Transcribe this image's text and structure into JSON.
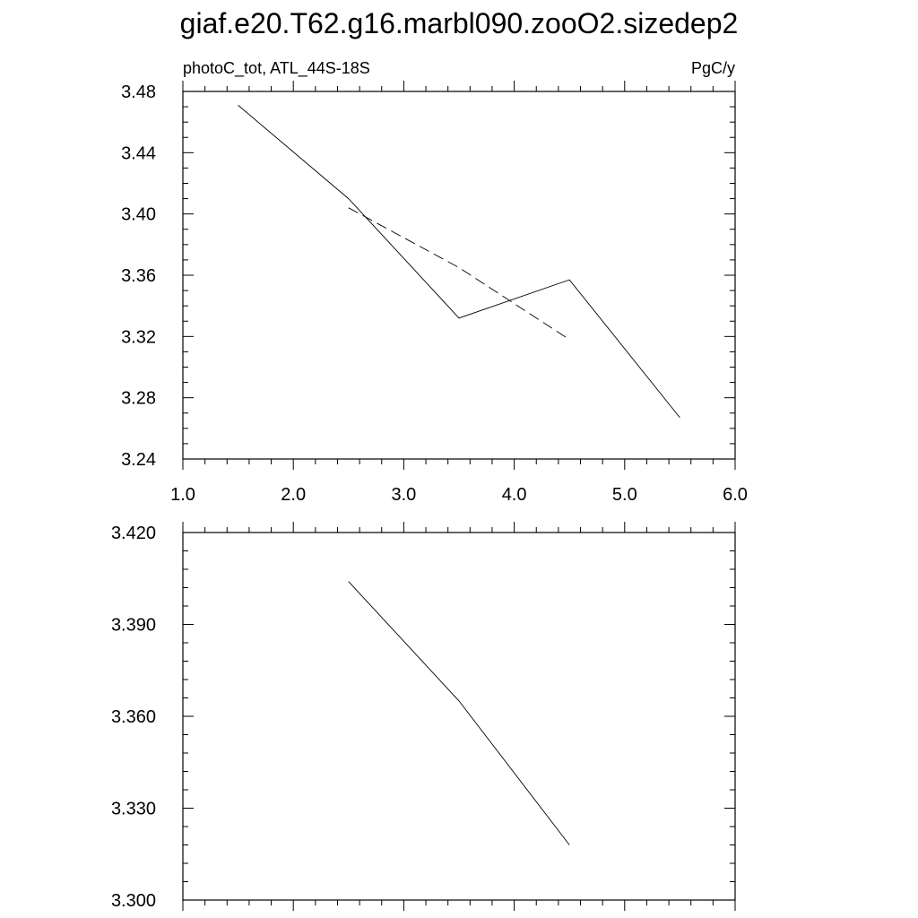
{
  "page": {
    "title": "giaf.e20.T62.g16.marbl090.zooO2.sizedep2"
  },
  "chart_data": [
    {
      "type": "line",
      "left_label": "photoC_tot, ATL_44S-18S",
      "right_label": "PgC/y",
      "xlim": [
        1.0,
        6.0
      ],
      "ylim": [
        3.24,
        3.48
      ],
      "x_ticks": [
        1.0,
        2.0,
        3.0,
        4.0,
        5.0,
        6.0
      ],
      "x_tick_labels": [
        "1.0",
        "2.0",
        "3.0",
        "4.0",
        "5.0",
        "6.0"
      ],
      "y_ticks": [
        3.24,
        3.28,
        3.32,
        3.36,
        3.4,
        3.44,
        3.48
      ],
      "y_tick_labels": [
        "3.24",
        "3.28",
        "3.32",
        "3.36",
        "3.40",
        "3.44",
        "3.48"
      ],
      "grid": false,
      "series": [
        {
          "style": "solid",
          "x": [
            1.5,
            2.5,
            3.5,
            4.5,
            5.5
          ],
          "y": [
            3.471,
            3.41,
            3.332,
            3.357,
            3.267
          ]
        },
        {
          "style": "dashed",
          "x": [
            2.5,
            3.5,
            4.5
          ],
          "y": [
            3.404,
            3.365,
            3.318
          ]
        }
      ]
    },
    {
      "type": "line",
      "xlim": [
        1.0,
        6.0
      ],
      "ylim": [
        3.3,
        3.42
      ],
      "x_ticks": [
        1.0,
        2.0,
        3.0,
        4.0,
        5.0,
        6.0
      ],
      "y_ticks": [
        3.3,
        3.33,
        3.36,
        3.39,
        3.42
      ],
      "y_tick_labels": [
        "3.300",
        "3.330",
        "3.360",
        "3.390",
        "3.420"
      ],
      "grid": false,
      "series": [
        {
          "style": "solid",
          "x": [
            2.5,
            3.5,
            4.5
          ],
          "y": [
            3.404,
            3.365,
            3.318
          ]
        }
      ]
    }
  ]
}
